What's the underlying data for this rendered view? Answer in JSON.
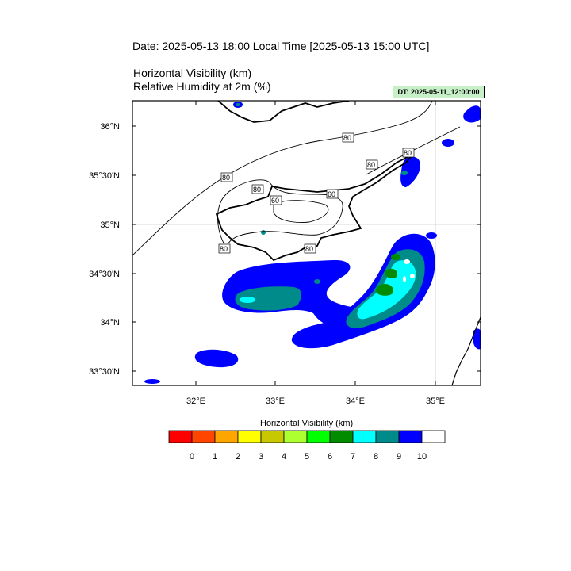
{
  "header": {
    "title": "Date: 2025-05-13  18:00 Local Time [2025-05-13  15:00 UTC]",
    "subtitle_1": "Horizontal Visibility   (km)",
    "subtitle_2": "Relative Humidity at 2m   (%)",
    "dt_badge": "DT: 2025-05-11_12:00:00"
  },
  "map": {
    "lat_labels": [
      "36°N",
      "35°30'N",
      "35°N",
      "34°30'N",
      "34°N",
      "33°30'N"
    ],
    "lon_labels": [
      "32°E",
      "33°E",
      "34°E",
      "35°E"
    ],
    "rh_contour_labels": [
      "80",
      "80",
      "80",
      "80",
      "80",
      "60",
      "60",
      "80",
      "80"
    ]
  },
  "colorbar": {
    "title": "Horizontal Visibility  (km)",
    "colors": [
      "#ff0000",
      "#ff4500",
      "#ffa500",
      "#ffff00",
      "#c8c800",
      "#adff2f",
      "#00ff00",
      "#008b00",
      "#00ffff",
      "#008b8b",
      "#0000ff",
      "#ffffff"
    ],
    "tick_labels": [
      "0",
      "1",
      "2",
      "3",
      "4",
      "5",
      "6",
      "7",
      "8",
      "9",
      "10"
    ]
  }
}
